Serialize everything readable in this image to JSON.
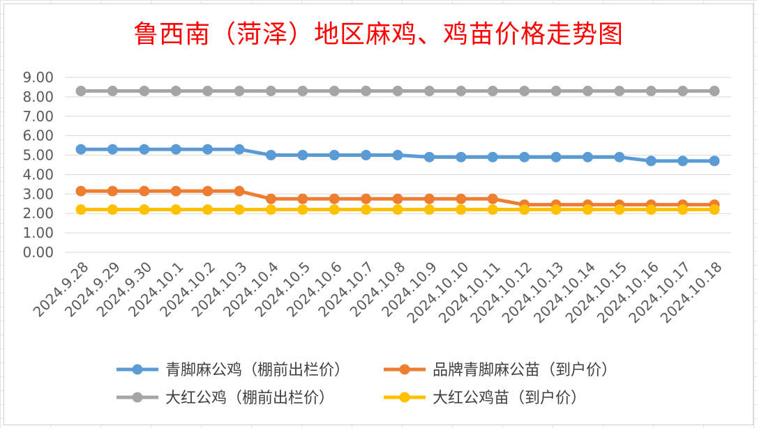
{
  "chart_data": {
    "type": "line",
    "title": "鲁西南（菏泽）地区麻鸡、鸡苗价格走势图",
    "xlabel": "",
    "ylabel": "",
    "ylim": [
      0,
      9
    ],
    "y_ticks": [
      "0.00",
      "1.00",
      "2.00",
      "3.00",
      "4.00",
      "5.00",
      "6.00",
      "7.00",
      "8.00",
      "9.00"
    ],
    "categories": [
      "2024.9.28",
      "2024.9.29",
      "2024.9.30",
      "2024.10.1",
      "2024.10.2",
      "2024.10.3",
      "2024.10.4",
      "2024.10.5",
      "2024.10.6",
      "2024.10.7",
      "2024.10.8",
      "2024.10.9",
      "2024.10.10",
      "2024.10.11",
      "2024.10.12",
      "2024.10.13",
      "2024.10.14",
      "2024.10.15",
      "2024.10.16",
      "2024.10.17",
      "2024.10.18"
    ],
    "grid": true,
    "legend_position": "bottom",
    "series": [
      {
        "name": "青脚麻公鸡（棚前出栏价）",
        "color": "#5b9bd5",
        "values": [
          5.3,
          5.3,
          5.3,
          5.3,
          5.3,
          5.3,
          5.0,
          5.0,
          5.0,
          5.0,
          5.0,
          4.9,
          4.9,
          4.9,
          4.9,
          4.9,
          4.9,
          4.9,
          4.7,
          4.7,
          4.7
        ]
      },
      {
        "name": "品牌青脚麻公苗（到户价）",
        "color": "#ed7d31",
        "values": [
          3.15,
          3.15,
          3.15,
          3.15,
          3.15,
          3.15,
          2.75,
          2.75,
          2.75,
          2.75,
          2.75,
          2.75,
          2.75,
          2.75,
          2.45,
          2.45,
          2.45,
          2.45,
          2.45,
          2.45,
          2.45
        ]
      },
      {
        "name": "大红公鸡（棚前出栏价）",
        "color": "#a5a5a5",
        "values": [
          8.3,
          8.3,
          8.3,
          8.3,
          8.3,
          8.3,
          8.3,
          8.3,
          8.3,
          8.3,
          8.3,
          8.3,
          8.3,
          8.3,
          8.3,
          8.3,
          8.3,
          8.3,
          8.3,
          8.3,
          8.3
        ]
      },
      {
        "name": "大红公鸡苗（到户价）",
        "color": "#ffc000",
        "values": [
          2.2,
          2.2,
          2.2,
          2.2,
          2.2,
          2.2,
          2.2,
          2.2,
          2.2,
          2.2,
          2.2,
          2.2,
          2.2,
          2.2,
          2.2,
          2.2,
          2.2,
          2.2,
          2.2,
          2.2,
          2.2
        ]
      }
    ],
    "legend_order": [
      0,
      1,
      2,
      3
    ]
  }
}
